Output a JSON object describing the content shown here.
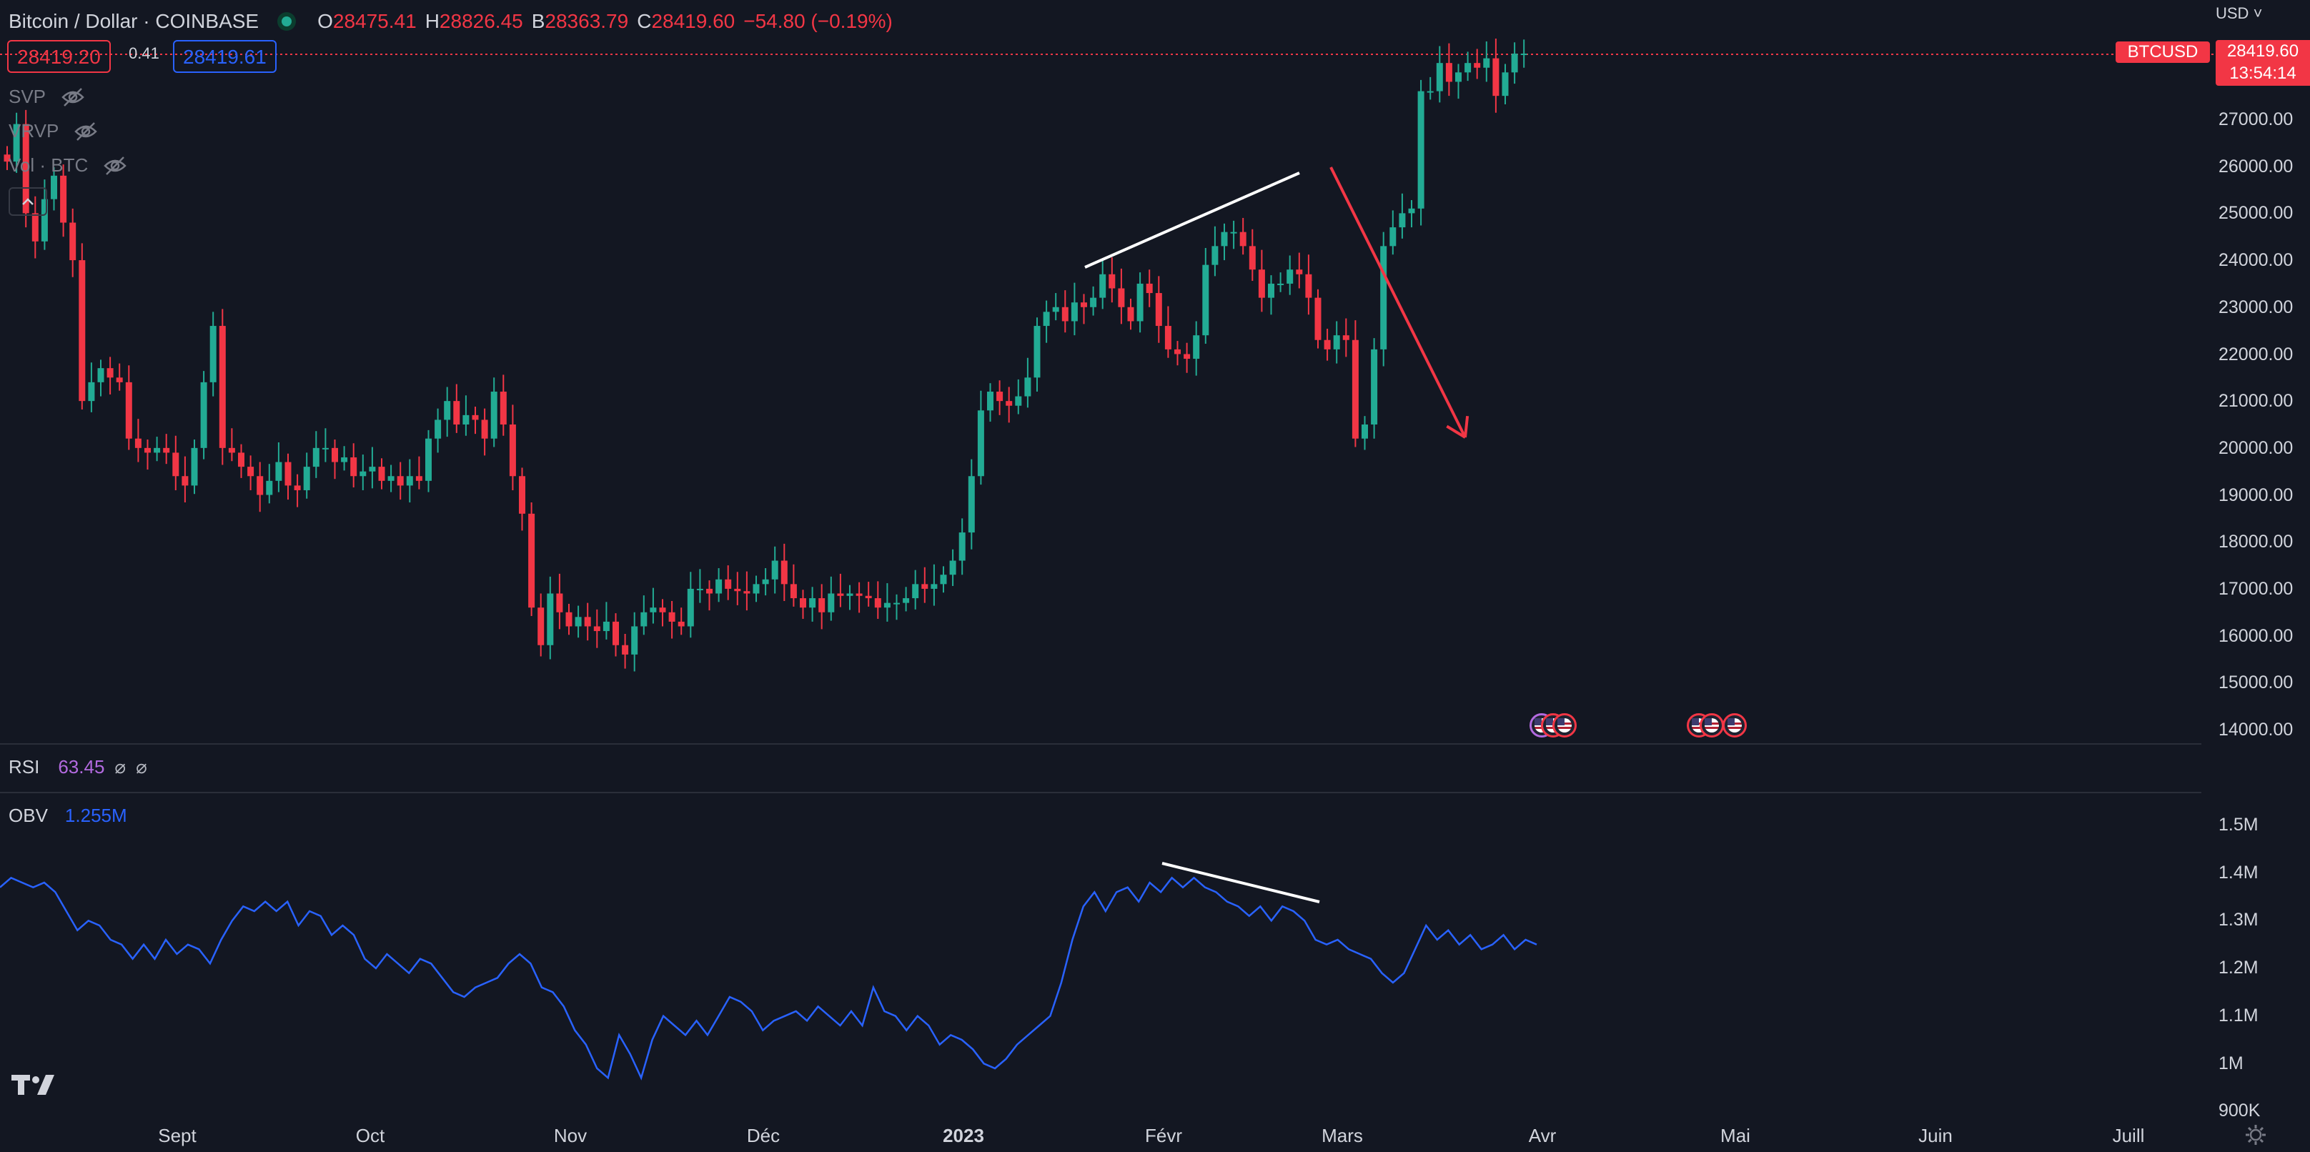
{
  "header": {
    "title": "Bitcoin / Dollar · COINBASE",
    "ohlc": [
      {
        "k": "O",
        "v": "28475.41"
      },
      {
        "k": "H",
        "v": "28826.45"
      },
      {
        "k": "B",
        "v": "28363.79"
      },
      {
        "k": "C",
        "v": "28419.60"
      }
    ],
    "change": "−54.80 (−0.19%)",
    "bid": "28419.20",
    "spread": "0.41",
    "ask": "28419.61"
  },
  "indicators": [
    {
      "label": "SVP",
      "icon": "eye-off-icon"
    },
    {
      "label": "VRVP",
      "icon": "eye-off-icon"
    },
    {
      "label": "Vol · BTC",
      "icon": "eye-off-icon"
    }
  ],
  "rsi": {
    "label": "RSI",
    "value": "63.45",
    "na1": "⌀",
    "na2": "⌀"
  },
  "obv": {
    "label": "OBV",
    "value": "1.255M"
  },
  "price_axis": {
    "currency": "USD",
    "labels": [
      "27000.00",
      "26000.00",
      "25000.00",
      "24000.00",
      "23000.00",
      "22000.00",
      "21000.00",
      "20000.00",
      "19000.00",
      "18000.00",
      "17000.00",
      "16000.00",
      "15000.00",
      "14000.00"
    ]
  },
  "obv_axis": {
    "labels": [
      "1.5M",
      "1.4M",
      "1.3M",
      "1.2M",
      "1.1M",
      "1M",
      "900K"
    ]
  },
  "last_price": {
    "ticker": "BTCUSD",
    "price": "28419.60",
    "countdown": "13:54:14"
  },
  "time_axis": {
    "labels": [
      {
        "t": "Sept",
        "bold": false
      },
      {
        "t": "Oct",
        "bold": false
      },
      {
        "t": "Nov",
        "bold": false
      },
      {
        "t": "Déc",
        "bold": false
      },
      {
        "t": "2023",
        "bold": true
      },
      {
        "t": "Févr",
        "bold": false
      },
      {
        "t": "Mars",
        "bold": false
      },
      {
        "t": "Avr",
        "bold": false
      },
      {
        "t": "Mai",
        "bold": false
      },
      {
        "t": "Juin",
        "bold": false
      },
      {
        "t": "Juill",
        "bold": false
      }
    ]
  },
  "colors": {
    "up": "#22ab94",
    "down": "#f23645",
    "obv_line": "#2962ff",
    "accent_purple": "#b36ae0",
    "drawing": "#ffffff"
  },
  "chart_data": {
    "type": "candlestick",
    "price_range": [
      14000,
      28700
    ],
    "close_series": [
      26100,
      26900,
      25000,
      24400,
      25300,
      25800,
      24800,
      24000,
      21000,
      21400,
      21700,
      21500,
      21400,
      20200,
      20000,
      19900,
      20000,
      19900,
      19400,
      19200,
      20000,
      21400,
      22600,
      20000,
      19900,
      19600,
      19400,
      19000,
      19300,
      19700,
      19200,
      19100,
      19600,
      20000,
      20000,
      19700,
      19800,
      19400,
      19500,
      19600,
      19300,
      19400,
      19200,
      19400,
      19300,
      20200,
      20600,
      21000,
      20500,
      20700,
      20600,
      20200,
      21200,
      20500,
      19400,
      18600,
      16600,
      15800,
      16900,
      16500,
      16200,
      16400,
      16200,
      16100,
      16300,
      15800,
      15600,
      16200,
      16500,
      16600,
      16500,
      16300,
      16200,
      17000,
      17000,
      16900,
      17200,
      17000,
      16950,
      16900,
      17100,
      17200,
      17600,
      17100,
      16800,
      16600,
      16800,
      16500,
      16900,
      16850,
      16900,
      16850,
      16800,
      16600,
      16700,
      16700,
      16800,
      17100,
      17000,
      17100,
      17300,
      17600,
      18200,
      19400,
      20800,
      21200,
      21000,
      20900,
      21100,
      21500,
      22600,
      22900,
      23000,
      22700,
      23100,
      23000,
      23200,
      23700,
      23400,
      23000,
      22700,
      23500,
      23300,
      22600,
      22100,
      22000,
      21900,
      22400,
      23900,
      24300,
      24600,
      24600,
      24300,
      23800,
      23200,
      23500,
      23500,
      23800,
      23700,
      23200,
      22300,
      22100,
      22400,
      22300,
      20200,
      20500,
      22100,
      24300,
      24700,
      25000,
      25100,
      27600,
      27600,
      28200,
      27800,
      28000,
      28200,
      28100,
      28300,
      27500,
      28000,
      28400,
      28400
    ],
    "obv_range": [
      900000,
      1550000
    ],
    "obv_series": [
      1370000,
      1390000,
      1380000,
      1370000,
      1380000,
      1360000,
      1320000,
      1280000,
      1300000,
      1290000,
      1260000,
      1250000,
      1220000,
      1250000,
      1220000,
      1260000,
      1230000,
      1250000,
      1240000,
      1210000,
      1260000,
      1300000,
      1330000,
      1320000,
      1340000,
      1320000,
      1340000,
      1290000,
      1320000,
      1310000,
      1270000,
      1290000,
      1270000,
      1220000,
      1200000,
      1230000,
      1210000,
      1190000,
      1220000,
      1210000,
      1180000,
      1150000,
      1140000,
      1160000,
      1170000,
      1180000,
      1210000,
      1230000,
      1210000,
      1160000,
      1150000,
      1120000,
      1070000,
      1040000,
      990000,
      970000,
      1060000,
      1020000,
      970000,
      1050000,
      1100000,
      1080000,
      1060000,
      1090000,
      1060000,
      1100000,
      1140000,
      1130000,
      1110000,
      1070000,
      1090000,
      1100000,
      1110000,
      1090000,
      1120000,
      1100000,
      1080000,
      1110000,
      1080000,
      1160000,
      1110000,
      1100000,
      1070000,
      1100000,
      1080000,
      1040000,
      1060000,
      1050000,
      1030000,
      1000000,
      990000,
      1010000,
      1040000,
      1060000,
      1080000,
      1100000,
      1170000,
      1260000,
      1330000,
      1360000,
      1320000,
      1360000,
      1370000,
      1340000,
      1380000,
      1360000,
      1390000,
      1370000,
      1390000,
      1370000,
      1360000,
      1340000,
      1330000,
      1310000,
      1330000,
      1300000,
      1330000,
      1320000,
      1300000,
      1260000,
      1250000,
      1260000,
      1240000,
      1230000,
      1220000,
      1190000,
      1170000,
      1190000,
      1240000,
      1290000,
      1260000,
      1280000,
      1250000,
      1270000,
      1240000,
      1250000,
      1270000,
      1240000,
      1260000,
      1250000
    ],
    "annotations": [
      {
        "type": "trendline",
        "pane": "price",
        "from": [
          1518,
          374
        ],
        "to": [
          1818,
          242
        ]
      },
      {
        "type": "arrow",
        "pane": "price",
        "from": [
          1862,
          234
        ],
        "to": [
          2050,
          612
        ]
      },
      {
        "type": "trendline",
        "pane": "obv",
        "from": [
          1626,
          1208
        ],
        "to": [
          1846,
          1262
        ]
      }
    ]
  }
}
